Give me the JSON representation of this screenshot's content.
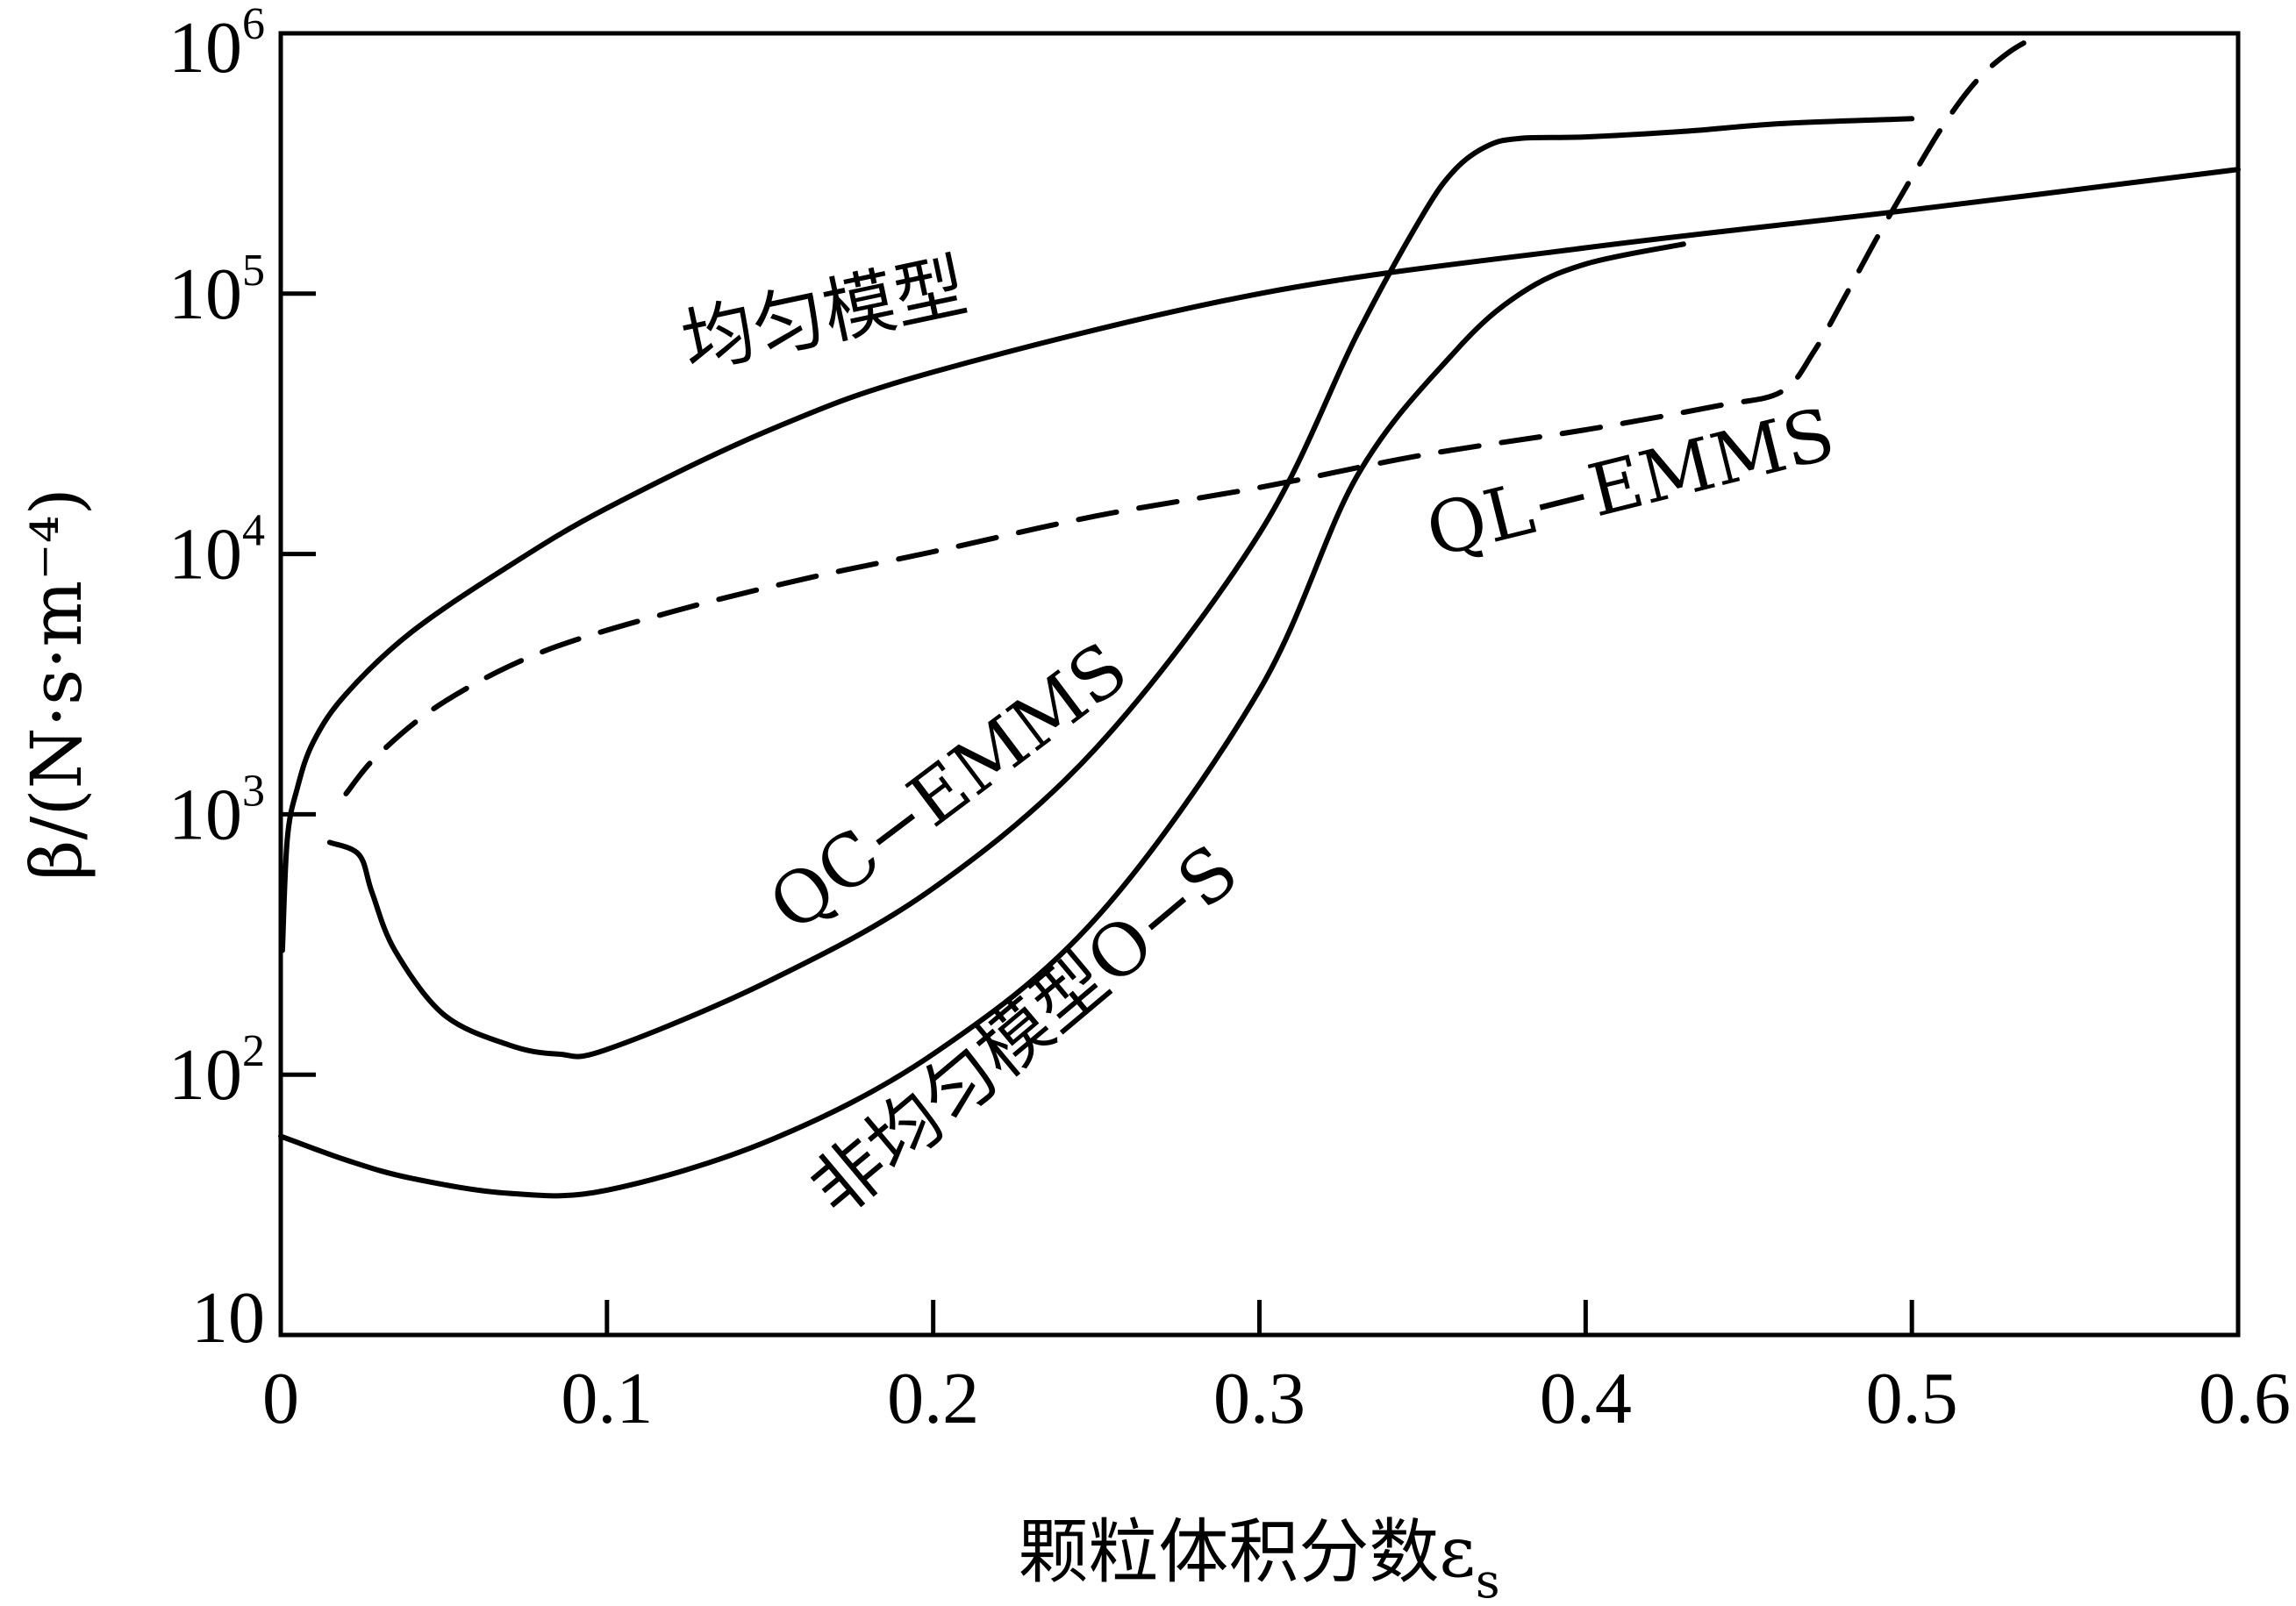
{
  "chart_data": {
    "type": "line",
    "title": "",
    "xlabel": "颗粒体积分数ε",
    "xlabel_subscript": "s",
    "ylabel": "β/(N·s·m⁻⁴)",
    "yscale": "log",
    "xlim": [
      0,
      0.6
    ],
    "ylim": [
      10,
      1000000
    ],
    "x_ticks": [
      "0",
      "0.1",
      "0.2",
      "0.3",
      "0.4",
      "0.5",
      "0.6"
    ],
    "y_ticks": [
      {
        "base": "10",
        "exp": "",
        "value": 10
      },
      {
        "base": "10",
        "exp": "2",
        "value": 100
      },
      {
        "base": "10",
        "exp": "3",
        "value": 1000
      },
      {
        "base": "10",
        "exp": "4",
        "value": 10000
      },
      {
        "base": "10",
        "exp": "5",
        "value": 100000
      },
      {
        "base": "10",
        "exp": "6",
        "value": 1000000
      }
    ],
    "grid": false,
    "legend": "none",
    "series": [
      {
        "name": "均匀模型",
        "style": "solid",
        "x": [
          0.0005,
          0.002,
          0.005,
          0.01,
          0.02,
          0.04,
          0.07,
          0.1,
          0.15,
          0.2,
          0.3,
          0.4,
          0.5,
          0.6
        ],
        "y": [
          300,
          800,
          1250,
          1900,
          2900,
          5000,
          9000,
          15000,
          30000,
          50000,
          100000,
          150000,
          210000,
          300000
        ]
      },
      {
        "name": "QL-EMMS",
        "style": "dashed",
        "x": [
          0.02,
          0.03,
          0.05,
          0.08,
          0.12,
          0.16,
          0.2,
          0.25,
          0.3,
          0.35,
          0.4,
          0.44,
          0.46,
          0.47,
          0.48,
          0.49,
          0.5,
          0.51,
          0.52,
          0.53,
          0.54
        ],
        "y": [
          1200,
          1700,
          2700,
          4200,
          6000,
          8000,
          10200,
          14000,
          18000,
          24000,
          30000,
          37000,
          42000,
          60000,
          100000,
          170000,
          280000,
          450000,
          660000,
          850000,
          1000000
        ]
      },
      {
        "name": "QC-EMMS",
        "style": "solid",
        "x": [
          0.015,
          0.024,
          0.028,
          0.035,
          0.05,
          0.07,
          0.085,
          0.1,
          0.15,
          0.2,
          0.25,
          0.3,
          0.33,
          0.35,
          0.36,
          0.37,
          0.38,
          0.4,
          0.43,
          0.46,
          0.5
        ],
        "y": [
          780,
          700,
          500,
          300,
          170,
          130,
          120,
          125,
          230,
          520,
          1800,
          12000,
          70000,
          200000,
          300000,
          370000,
          395000,
          400000,
          420000,
          450000,
          470000
        ]
      },
      {
        "name": "非均匀模型O-S",
        "style": "solid",
        "x": [
          0.0,
          0.02,
          0.04,
          0.07,
          0.1,
          0.15,
          0.2,
          0.25,
          0.3,
          0.33,
          0.36,
          0.38,
          0.4,
          0.43
        ],
        "y": [
          58,
          47,
          40,
          35,
          36,
          56,
          120,
          400,
          3000,
          20000,
          60000,
          100000,
          130000,
          155000
        ]
      }
    ],
    "annotations": [
      {
        "text": "均匀模型",
        "series": "均匀模型"
      },
      {
        "text": "QL−EMMS",
        "series": "QL-EMMS"
      },
      {
        "text": "QC−EMMS",
        "series": "QC-EMMS"
      },
      {
        "text": "非均匀模型O−S",
        "series": "非均匀模型O-S"
      }
    ]
  }
}
